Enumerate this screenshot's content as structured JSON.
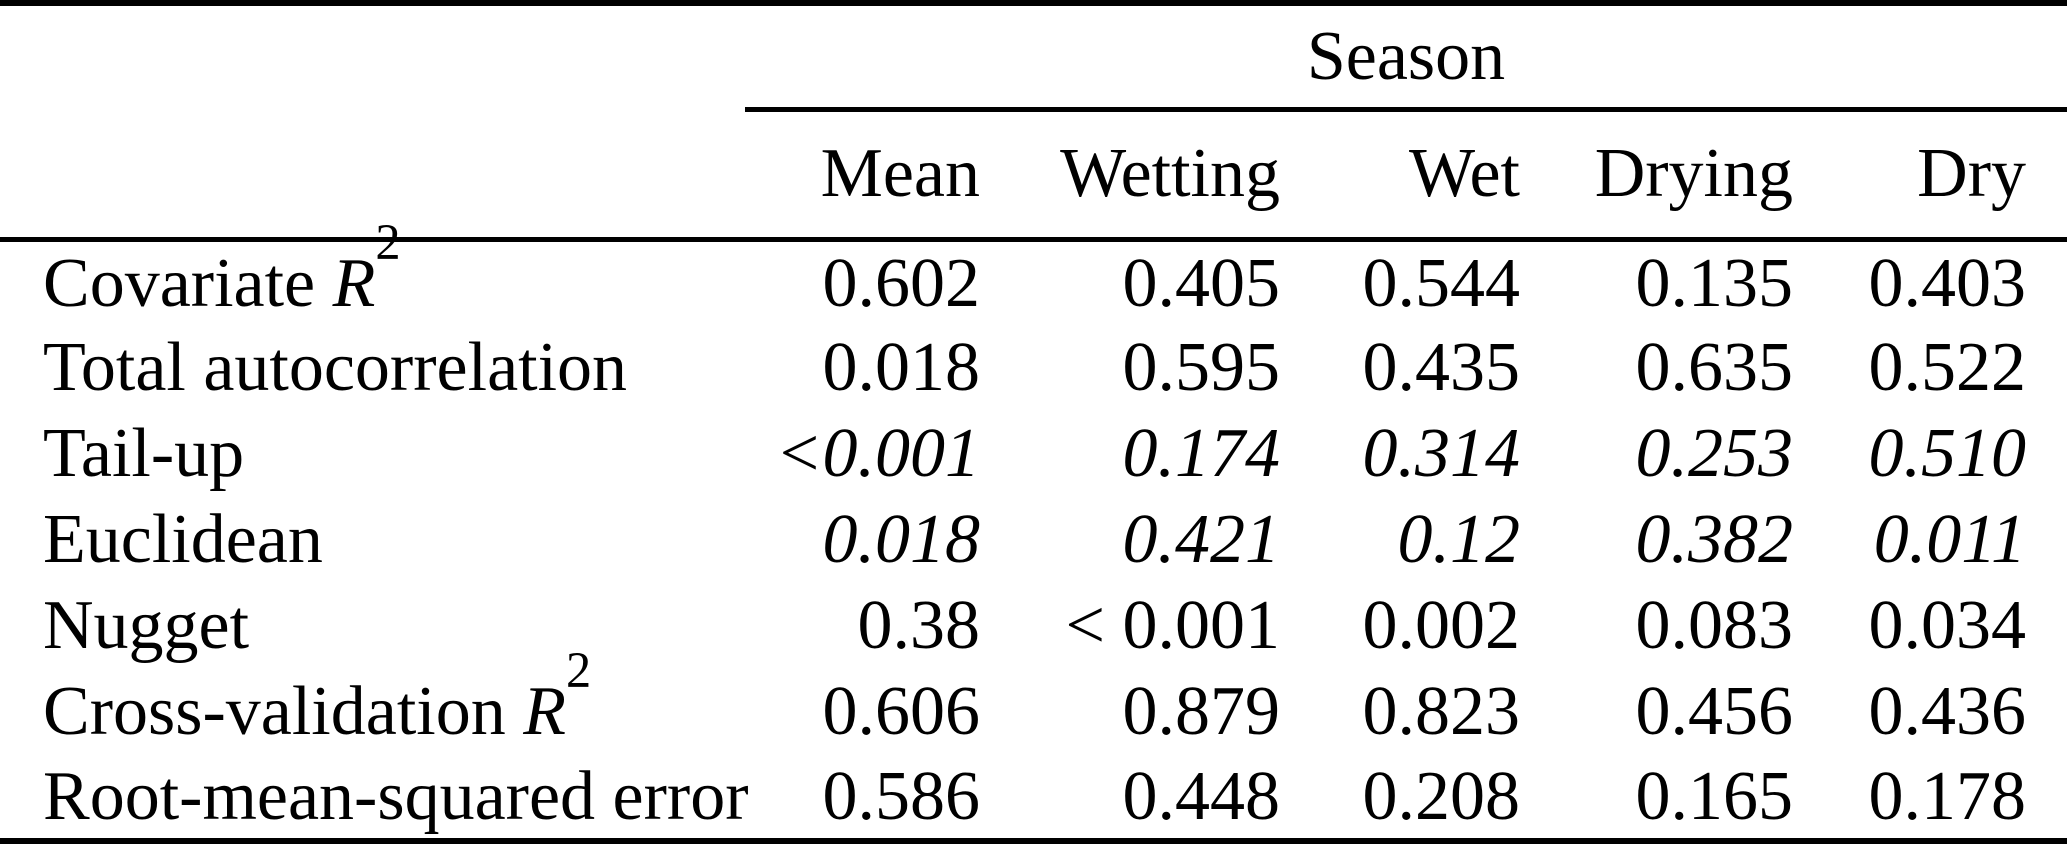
{
  "table": {
    "group_header": "Season",
    "columns": [
      "Mean",
      "Wetting",
      "Wet",
      "Drying",
      "Dry"
    ],
    "rows": [
      {
        "label_text": "Covariate ",
        "label_math": "R",
        "label_sup": "2",
        "italic_values": false,
        "values": [
          "0.602",
          "0.405",
          "0.544",
          "0.135",
          "0.403"
        ]
      },
      {
        "label_text": "Total autocorrelation",
        "italic_values": false,
        "values": [
          "0.018",
          "0.595",
          "0.435",
          "0.635",
          "0.522"
        ]
      },
      {
        "label_text": "Tail-up",
        "italic_values": true,
        "values": [
          "<0.001",
          "0.174",
          "0.314",
          "0.253",
          "0.510"
        ]
      },
      {
        "label_text": "Euclidean",
        "italic_values": true,
        "values": [
          "0.018",
          "0.421",
          "0.12",
          "0.382",
          "0.011"
        ]
      },
      {
        "label_text": "Nugget",
        "italic_values": false,
        "values": [
          "0.38",
          "< 0.001",
          "0.002",
          "0.083",
          "0.034"
        ]
      },
      {
        "label_text": "Cross-validation ",
        "label_math": "R",
        "label_sup": "2",
        "italic_values": false,
        "values": [
          "0.606",
          "0.879",
          "0.823",
          "0.456",
          "0.436"
        ]
      },
      {
        "label_text": "Root-mean-squared error",
        "italic_values": false,
        "values": [
          "0.586",
          "0.448",
          "0.208",
          "0.165",
          "0.178"
        ]
      }
    ]
  },
  "colors": {
    "text": "#000000",
    "background": "#ffffff",
    "rule": "#000000"
  }
}
